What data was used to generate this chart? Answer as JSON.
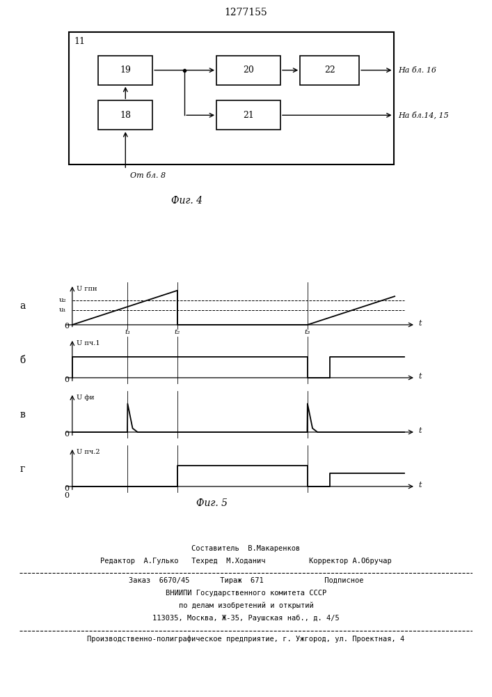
{
  "title": "1277155",
  "fig4_label": "Фиг. 4",
  "fig5_label": "Фиг. 5",
  "block11_label": "11",
  "block18_label": "18",
  "block19_label": "19",
  "block20_label": "20",
  "block21_label": "21",
  "block22_label": "22",
  "label_from_bl8": "От бл. 8",
  "label_to_bl16": "На бл. 16",
  "label_to_bl1415": "На бл.14, 15",
  "subplot_a_label": "а",
  "subplot_b_label": "б",
  "subplot_v_label": "в",
  "subplot_g_label": "г",
  "y_label_a": "U гпн",
  "y_label_b": "U пч.1",
  "y_label_v": "U фи",
  "y_label_g": "U пч.2",
  "u1_label": "u₁",
  "u2_label": "u₂",
  "t1_label": "t₁",
  "t2_label": "t₂",
  "t3_label": "t₃",
  "t_label": "t",
  "zero_label": "0",
  "background_color": "#ffffff",
  "bottom_text_line1": "Составитель  В.Макаренков",
  "bottom_text_line2": "Редактор  А.Гулько   Техред  М.Ходанич          Корректор А.Обручар",
  "bottom_text_line3": "Заказ  6670/45       Тираж  671              Подписное",
  "bottom_text_line4": "ВНИИПИ Государственного комитета СССР",
  "bottom_text_line5": "по делам изобретений и открытий",
  "bottom_text_line6": "113035, Москва, Ж-35, Раушская наб., д. 4/5",
  "bottom_text_line7": "Производственно-полиграфическое предприятие, г. Ужгород, ул. Проектная, 4"
}
